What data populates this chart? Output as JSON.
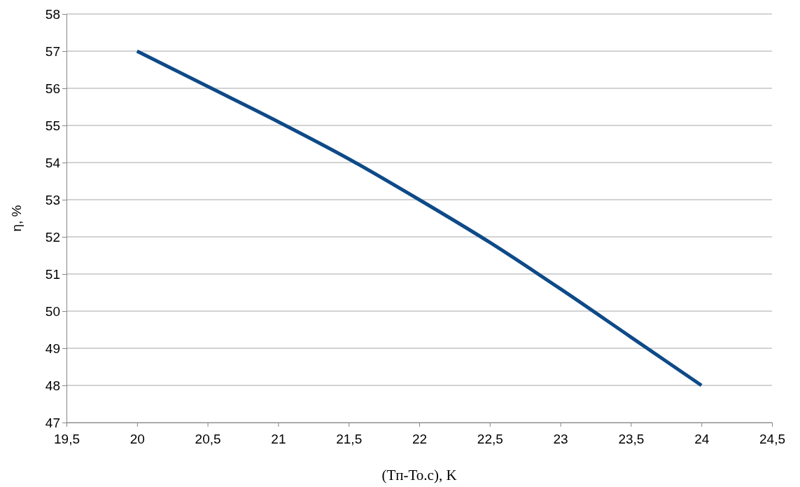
{
  "chart_data": {
    "type": "line",
    "xlabel": "(Tп-To.c), K",
    "ylabel": "η, %",
    "x": [
      20,
      20.5,
      21,
      21.5,
      22,
      22.5,
      23,
      23.5,
      24
    ],
    "series": [
      {
        "color": "#0e4a88",
        "values": [
          57,
          56.05,
          55.1,
          54.1,
          53,
          51.85,
          50.6,
          49.3,
          48
        ]
      }
    ],
    "xlim": [
      19.5,
      24.5
    ],
    "xticks": [
      {
        "value": 19.5,
        "label": "19,5"
      },
      20,
      {
        "value": 20.5,
        "label": "20,5"
      },
      21,
      {
        "value": 21.5,
        "label": "21,5"
      },
      22,
      {
        "value": 22.5,
        "label": "22,5"
      },
      23,
      {
        "value": 23.5,
        "label": "23,5"
      },
      24,
      {
        "value": 24.5,
        "label": "24,5"
      }
    ],
    "ylim": [
      47,
      58
    ],
    "yticks": [
      47,
      48,
      49,
      50,
      51,
      52,
      53,
      54,
      55,
      56,
      57,
      58
    ],
    "grid": "y",
    "marker": "none",
    "line_style": "solid"
  }
}
